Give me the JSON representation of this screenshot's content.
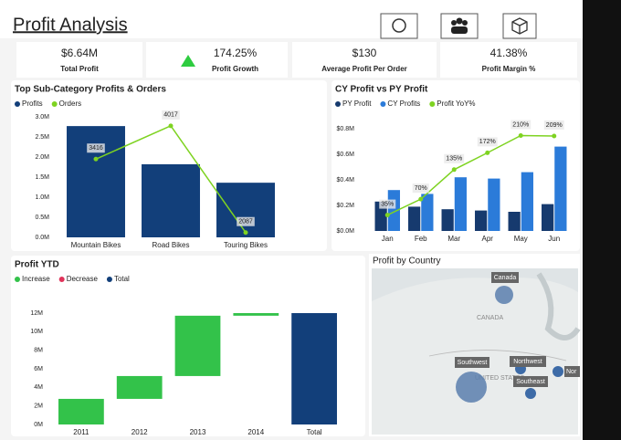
{
  "title": "Profit Analysis",
  "kpis": [
    {
      "value": "$6.64M",
      "label": "Total Profit"
    },
    {
      "value": "174.25%",
      "label": "Profit Growth"
    },
    {
      "value": "$130",
      "label": "Average Profit Per Order"
    },
    {
      "value": "41.38%",
      "label": "Profit Margin %"
    }
  ],
  "chart_data": [
    {
      "type": "combo",
      "title": "Top Sub-Category Profits & Orders",
      "categories": [
        "Mountain Bikes",
        "Road Bikes",
        "Touring Bikes"
      ],
      "series": [
        {
          "name": "Profits",
          "color": "#123f7a",
          "values": [
            2.77,
            1.82,
            1.36
          ]
        },
        {
          "name": "Orders",
          "color": "#7ed321",
          "values": [
            3416,
            4017,
            2087
          ],
          "axis": "y2"
        }
      ],
      "ylim": [
        0,
        3
      ],
      "yticks": [
        {
          "value": 0,
          "label": "0.0M"
        },
        {
          "value": 0.5,
          "label": "0.5M"
        },
        {
          "value": 1,
          "label": "1.0M"
        },
        {
          "value": 1.5,
          "label": "1.5M"
        },
        {
          "value": 2,
          "label": "2.0M"
        },
        {
          "value": 2.5,
          "label": "2.5M"
        },
        {
          "value": 3,
          "label": "3.0M"
        }
      ],
      "y2lim": [
        2000,
        4180
      ],
      "legend": "top-left"
    },
    {
      "type": "combo",
      "title": "CY Profit vs PY Profit",
      "categories": [
        "Jan",
        "Feb",
        "Mar",
        "Apr",
        "May",
        "Jun"
      ],
      "series": [
        {
          "name": "PY Profit",
          "color": "#163a6e",
          "values": [
            0.23,
            0.19,
            0.17,
            0.16,
            0.15,
            0.21
          ]
        },
        {
          "name": "CY Profits",
          "color": "#2b7bd9",
          "values": [
            0.32,
            0.29,
            0.42,
            0.41,
            0.46,
            0.66
          ]
        },
        {
          "name": "Profit YoY%",
          "color": "#7ed321",
          "values": [
            35,
            70,
            135,
            172,
            210,
            209
          ],
          "value_labels": [
            "35%",
            "70%",
            "135%",
            "172%",
            "210%",
            "209%"
          ],
          "axis": "y2"
        }
      ],
      "ylim": [
        0,
        0.8
      ],
      "yticks": [
        {
          "value": 0,
          "label": "$0.0M"
        },
        {
          "value": 0.2,
          "label": "$0.2M"
        },
        {
          "value": 0.4,
          "label": "$0.4M"
        },
        {
          "value": 0.6,
          "label": "$0.6M"
        },
        {
          "value": 0.8,
          "label": "$0.8M"
        }
      ],
      "y2lim": [
        0,
        225
      ],
      "legend": "top-left"
    },
    {
      "type": "waterfall",
      "title": "Profit YTD",
      "categories": [
        "2011",
        "2012",
        "2013",
        "2014",
        "Total"
      ],
      "values": [
        2.76,
        2.46,
        6.5,
        0.28,
        12.0
      ],
      "series": [
        {
          "name": "Increase",
          "color": "#33c24a"
        },
        {
          "name": "Decrease",
          "color": "#e0335a"
        },
        {
          "name": "Total",
          "color": "#123f7a"
        }
      ],
      "ylim": [
        0,
        12
      ],
      "yticks": [
        {
          "value": 0,
          "label": "0M"
        },
        {
          "value": 2,
          "label": "2M"
        },
        {
          "value": 4,
          "label": "4M"
        },
        {
          "value": 6,
          "label": "6M"
        },
        {
          "value": 8,
          "label": "8M"
        },
        {
          "value": 10,
          "label": "10M"
        },
        {
          "value": 12,
          "label": "12M"
        }
      ],
      "legend": "top-left"
    }
  ],
  "map": {
    "title": "Profit by Country",
    "regions": [
      "CANADA",
      "UNITED STATES"
    ],
    "bubbles": [
      "Canada",
      "Southwest",
      "Northwest",
      "Southeast",
      "Nor"
    ]
  }
}
